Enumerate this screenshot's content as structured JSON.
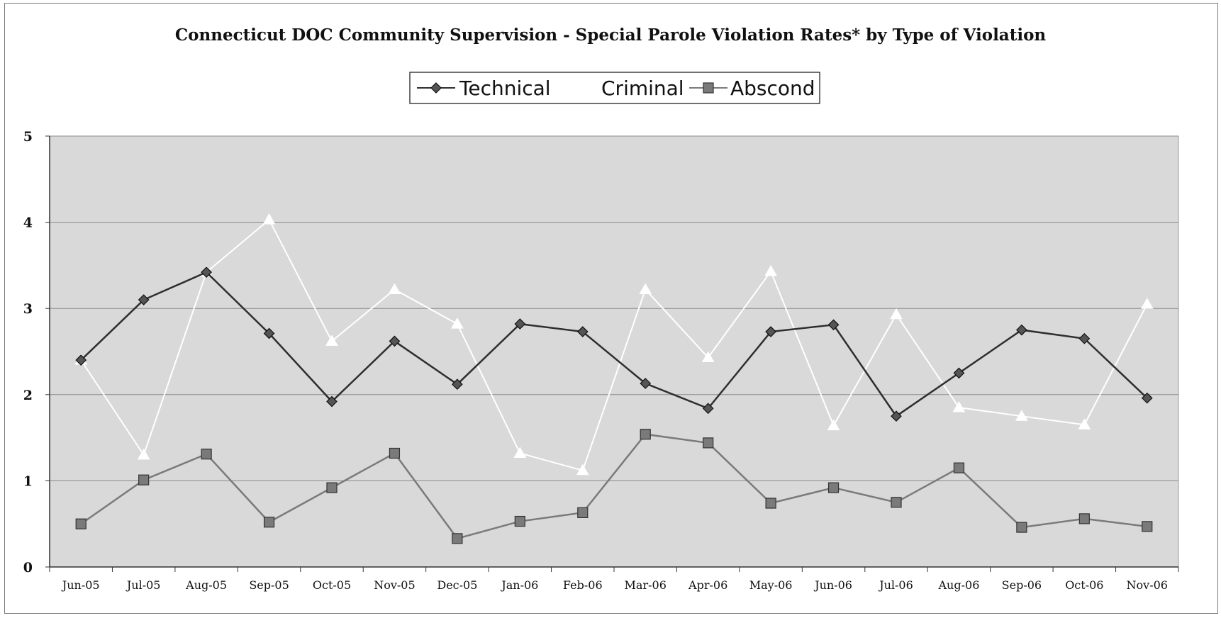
{
  "chart_data": {
    "type": "line",
    "title": "Connecticut DOC Community Supervision -  Special Parole Violation Rates* by Type of Violation",
    "xlabel": "",
    "ylabel": "",
    "ylim": [
      0,
      5
    ],
    "yticks": [
      "0",
      "1",
      "2",
      "3",
      "4",
      "5"
    ],
    "grid": true,
    "legend_position": "top-center",
    "categories": [
      "Jun-05",
      "Jul-05",
      "Aug-05",
      "Sep-05",
      "Oct-05",
      "Nov-05",
      "Dec-05",
      "Jan-06",
      "Feb-06",
      "Mar-06",
      "Apr-06",
      "May-06",
      "Jun-06",
      "Jul-06",
      "Aug-06",
      "Sep-06",
      "Oct-06",
      "Nov-06"
    ],
    "series": [
      {
        "name": "Technical",
        "marker": "diamond",
        "color": "#3c3c3c",
        "values": [
          2.4,
          3.1,
          3.42,
          2.71,
          1.92,
          2.62,
          2.12,
          2.82,
          2.73,
          2.13,
          1.84,
          2.73,
          2.81,
          1.75,
          2.25,
          2.75,
          2.65,
          1.96
        ]
      },
      {
        "name": "Criminal",
        "marker": "triangle",
        "color": "#ffffff",
        "values": [
          2.4,
          1.3,
          3.42,
          4.03,
          2.62,
          3.22,
          2.82,
          1.32,
          1.12,
          3.22,
          2.43,
          3.43,
          1.64,
          2.93,
          1.85,
          1.75,
          1.65,
          3.05
        ]
      },
      {
        "name": "Abscond",
        "marker": "square",
        "color": "#7a7a7a",
        "values": [
          0.5,
          1.01,
          1.31,
          0.52,
          0.92,
          1.32,
          0.33,
          0.53,
          0.63,
          1.54,
          1.44,
          0.74,
          0.92,
          0.75,
          1.15,
          0.46,
          0.56,
          0.47
        ]
      }
    ]
  },
  "colors": {
    "plot_background": "#d9d9d9",
    "gridline": "#8a8a8a",
    "axis": "#333333"
  }
}
